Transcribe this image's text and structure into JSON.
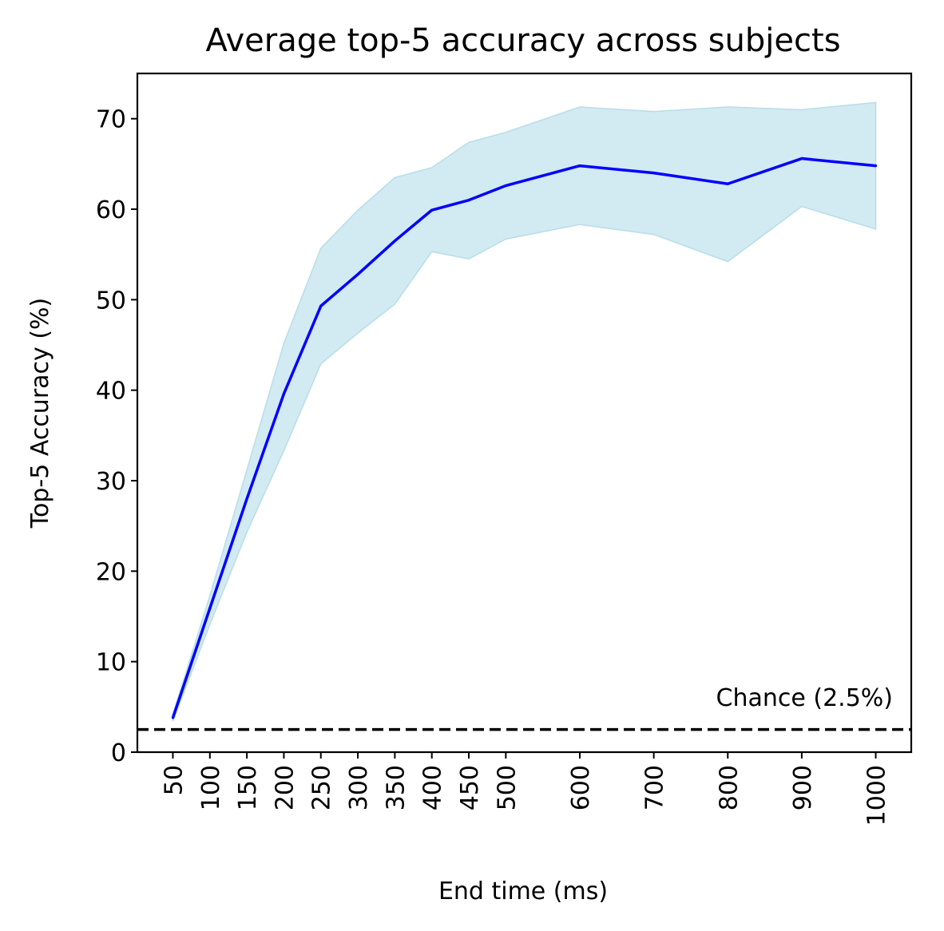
{
  "chart_data": {
    "type": "line",
    "title": "Average top-5 accuracy across subjects",
    "xlabel": "End time (ms)",
    "ylabel": "Top-5 Accuracy (%)",
    "xlim": [
      2,
      1048
    ],
    "ylim": [
      0,
      75
    ],
    "x_ticks": [
      50,
      100,
      150,
      200,
      250,
      300,
      350,
      400,
      450,
      500,
      600,
      700,
      800,
      900,
      1000
    ],
    "y_ticks": [
      0,
      10,
      20,
      30,
      40,
      50,
      60,
      70
    ],
    "grid": false,
    "series": [
      {
        "x": [
          50,
          100,
          150,
          200,
          250,
          300,
          350,
          400,
          450,
          500,
          600,
          700,
          800,
          900,
          1000
        ],
        "values": [
          3.8,
          15.9,
          28.0,
          39.6,
          49.3,
          52.8,
          56.5,
          59.9,
          61.0,
          62.6,
          64.8,
          64.0,
          62.8,
          65.6,
          64.8
        ],
        "upper": [
          4.2,
          17.3,
          31.2,
          45.2,
          55.7,
          59.9,
          63.5,
          64.6,
          67.4,
          68.5,
          71.3,
          70.8,
          71.3,
          71.0,
          71.8
        ],
        "lower": [
          3.4,
          14.1,
          24.3,
          33.3,
          42.9,
          46.3,
          49.5,
          55.3,
          54.5,
          56.7,
          58.3,
          57.2,
          54.2,
          60.3,
          57.8
        ],
        "color": "#0000ff",
        "band_color": "#add8e6"
      }
    ],
    "annotations": [
      {
        "text": "Chance (2.5%)",
        "y": 2.5,
        "line_style": "dashed",
        "color": "#000000"
      }
    ]
  }
}
